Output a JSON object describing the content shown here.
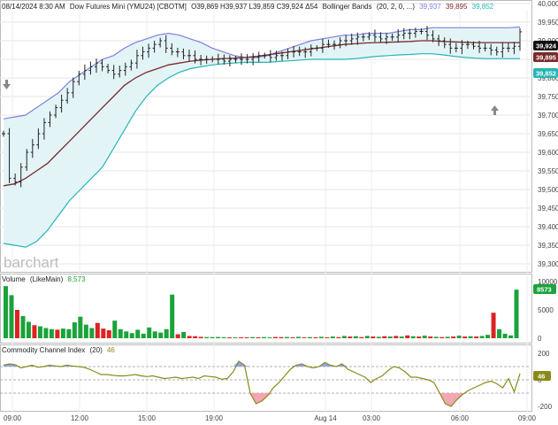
{
  "header": {
    "date": "08/14/2024 8:30 AM",
    "instrument": "Dow Futures Mini (YMU24) [CBOTM]",
    "ohlc": "O39,869 H39,937 L39,859 C39,924 Δ54",
    "indicator_label": "Bollinger Bands",
    "indicator_params": "(20, 2, 0, ...)",
    "band_upper": "39,937",
    "band_mid": "39,895",
    "band_lower": "39,852"
  },
  "watermark": "barchart",
  "panels": {
    "volume": {
      "title": "Volume",
      "sub": "(LikeMain)",
      "value": "8,573"
    },
    "cci": {
      "title": "Commodity Channel Index",
      "sub": "(20)",
      "value": "46"
    }
  },
  "price_axis": [
    "40,000",
    "39,950",
    "39,900",
    "39,850",
    "39,800",
    "39,750",
    "39,700",
    "39,650",
    "39,600",
    "39,550",
    "39,500",
    "39,450",
    "39,400",
    "39,350",
    "39,300"
  ],
  "volume_axis": [
    "10000",
    "5000",
    "0"
  ],
  "cci_axis": [
    "200",
    "0",
    "-200"
  ],
  "time_axis": [
    "09:00",
    "12:00",
    "15:00",
    "19:00",
    "Aug 14",
    "03:00",
    "06:00",
    "09:00"
  ],
  "price_pills": {
    "last": "39,924",
    "mid": "39,895",
    "lower": "39,852"
  },
  "volume_pill": "8573",
  "cci_pill": "46",
  "colors": {
    "upper_band": "#8080dd",
    "mid_band": "#7a2a2a",
    "lower_band": "#27b5b5",
    "band_fill": "#e3f4f7",
    "price": "#222222",
    "vol_up": "#1aa33a",
    "vol_down": "#dd2222",
    "cci_line": "#8a8a1a",
    "cci_pos": "#8ea4ee",
    "cci_neg": "#f2a6b0",
    "last_pill": "#111111",
    "mid_pill": "#7a2a2a",
    "lower_pill": "#27b5b5",
    "green_pill": "#1aa33a",
    "cci_pill": "#8a8a1a"
  },
  "chart_data": [
    {
      "type": "ohlc",
      "title": "08/14/2024 8:30 AM Dow Futures Mini (YMU24) [CBOTM]",
      "series_name": "Bollinger Bands (20, 2, 0, ...)",
      "ylim": [
        39300,
        40000
      ],
      "x_ticks": [
        "09:00",
        "12:00",
        "15:00",
        "19:00",
        "Aug 14",
        "03:00",
        "06:00",
        "09:00"
      ],
      "close": [
        39650,
        39530,
        39520,
        39560,
        39600,
        39620,
        39650,
        39680,
        39700,
        39720,
        39740,
        39760,
        39790,
        39810,
        39820,
        39830,
        39840,
        39830,
        39820,
        39810,
        39820,
        39830,
        39840,
        39860,
        39870,
        39880,
        39890,
        39900,
        39880,
        39870,
        39870,
        39860,
        39860,
        39850,
        39850,
        39850,
        39850,
        39850,
        39845,
        39850,
        39850,
        39850,
        39850,
        39855,
        39860,
        39860,
        39855,
        39860,
        39860,
        39870,
        39870,
        39870,
        39870,
        39880,
        39880,
        39890,
        39890,
        39890,
        39900,
        39900,
        39905,
        39910,
        39910,
        39915,
        39910,
        39905,
        39910,
        39910,
        39915,
        39920,
        39920,
        39925,
        39925,
        39915,
        39905,
        39900,
        39890,
        39880,
        39880,
        39890,
        39890,
        39885,
        39880,
        39880,
        39875,
        39870,
        39880,
        39880,
        39885,
        39924
      ],
      "bollinger_upper": [
        39690,
        39695,
        39700,
        39720,
        39740,
        39760,
        39790,
        39810,
        39830,
        39850,
        39860,
        39880,
        39895,
        39905,
        39915,
        39920,
        39915,
        39905,
        39895,
        39880,
        39870,
        39860,
        39855,
        39855,
        39860,
        39870,
        39880,
        39890,
        39900,
        39905,
        39910,
        39915,
        39915,
        39920,
        39920,
        39920,
        39925,
        39930,
        39930,
        39935,
        39935,
        39935,
        39935,
        39935,
        39935,
        39935,
        39935,
        39937
      ],
      "bollinger_mid": [
        39510,
        39515,
        39530,
        39550,
        39570,
        39600,
        39630,
        39660,
        39690,
        39720,
        39750,
        39780,
        39800,
        39815,
        39825,
        39835,
        39840,
        39845,
        39848,
        39850,
        39852,
        39853,
        39855,
        39858,
        39862,
        39866,
        39870,
        39874,
        39878,
        39882,
        39886,
        39890,
        39892,
        39894,
        39895,
        39896,
        39897,
        39898,
        39900,
        39900,
        39898,
        39897,
        39896,
        39895,
        39895,
        39895,
        39895,
        39895
      ],
      "bollinger_lower": [
        39355,
        39350,
        39345,
        39360,
        39390,
        39430,
        39470,
        39500,
        39530,
        39560,
        39610,
        39660,
        39710,
        39750,
        39780,
        39800,
        39815,
        39825,
        39830,
        39835,
        39838,
        39840,
        39842,
        39842,
        39842,
        39844,
        39846,
        39848,
        39850,
        39850,
        39850,
        39850,
        39852,
        39855,
        39858,
        39860,
        39862,
        39863,
        39865,
        39865,
        39862,
        39858,
        39855,
        39853,
        39852,
        39852,
        39852,
        39852
      ]
    },
    {
      "type": "bar",
      "title": "Volume (LikeMain) 8,573",
      "ylim": [
        0,
        10000
      ],
      "up": [
        true,
        true,
        false,
        true,
        true,
        false,
        true,
        true,
        true,
        false,
        true,
        true,
        true,
        true,
        true,
        true,
        false,
        false,
        false,
        true,
        true,
        true,
        true,
        true,
        true,
        true,
        true,
        true,
        true,
        true,
        false,
        true,
        false,
        false,
        false,
        true,
        true,
        true,
        true,
        false,
        true,
        false,
        false,
        true,
        false,
        true,
        true,
        false,
        false,
        true,
        false,
        true,
        false,
        true,
        false,
        true,
        false,
        true,
        false,
        true,
        false,
        true,
        false,
        true,
        false,
        true,
        false,
        true,
        false,
        true,
        false,
        true,
        false,
        true,
        false,
        true,
        false,
        true,
        false,
        true,
        false,
        true,
        false,
        true,
        true,
        false,
        true,
        true,
        true,
        true
      ],
      "values": [
        9200,
        7600,
        5000,
        3900,
        2900,
        2300,
        2100,
        1800,
        1600,
        1500,
        1700,
        1600,
        2800,
        3800,
        2400,
        1800,
        2700,
        1700,
        1400,
        3100,
        1600,
        1200,
        900,
        1500,
        800,
        1900,
        1200,
        1000,
        1600,
        7700,
        700,
        1100,
        400,
        350,
        250,
        200,
        200,
        220,
        180,
        150,
        150,
        160,
        150,
        200,
        170,
        200,
        150,
        220,
        200,
        220,
        160,
        250,
        150,
        200,
        160,
        250,
        150,
        300,
        200,
        400,
        300,
        350,
        200,
        400,
        300,
        250,
        350,
        300,
        400,
        300,
        500,
        350,
        300,
        450,
        300,
        250,
        200,
        250,
        300,
        450,
        300,
        350,
        300,
        400,
        600,
        4500,
        1600,
        800,
        500,
        8573
      ]
    },
    {
      "type": "line",
      "title": "Commodity Channel Index (20) 46",
      "ylim": [
        -250,
        250
      ],
      "values": [
        110,
        120,
        115,
        90,
        100,
        110,
        95,
        100,
        110,
        105,
        100,
        110,
        105,
        100,
        95,
        80,
        60,
        40,
        40,
        35,
        30,
        30,
        35,
        40,
        30,
        25,
        30,
        20,
        10,
        15,
        20,
        10,
        15,
        20,
        10,
        30,
        25,
        20,
        5,
        10,
        60,
        140,
        110,
        -100,
        -180,
        -160,
        -120,
        -60,
        -20,
        30,
        80,
        110,
        120,
        100,
        90,
        100,
        130,
        110,
        100,
        120,
        80,
        60,
        40,
        20,
        -20,
        10,
        30,
        70,
        100,
        90,
        60,
        20,
        20,
        10,
        0,
        -20,
        -100,
        -180,
        -200,
        -150,
        -110,
        -80,
        -60,
        -40,
        -20,
        -10,
        -30,
        -60,
        10,
        -90,
        46
      ]
    }
  ]
}
